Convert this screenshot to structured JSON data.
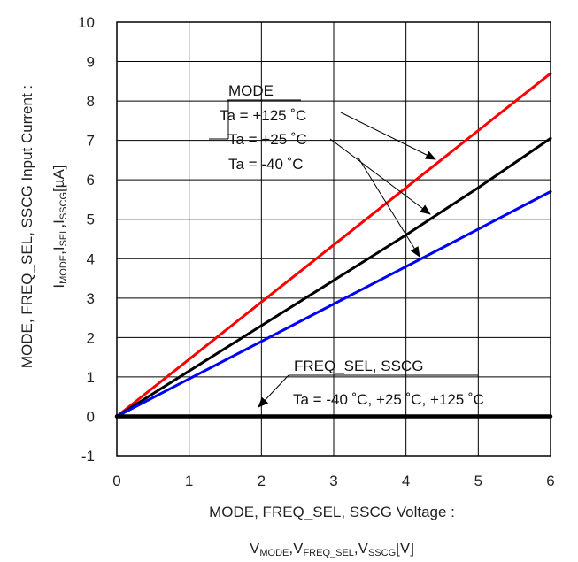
{
  "chart_data": {
    "type": "line",
    "xlabel": {
      "line1": "MODE, FREQ_SEL, SSCG Voltage :",
      "line2": [
        {
          "main": "V",
          "sub": "MODE"
        },
        {
          "main": ",V",
          "sub": "FREQ_SEL"
        },
        {
          "main": ",V",
          "sub": "SSCG"
        },
        {
          "main": "[V]",
          "sub": ""
        }
      ]
    },
    "ylabel": {
      "line1": "MODE, FREQ_SEL, SSCG Input Current :",
      "line2": [
        {
          "main": "I",
          "sub": "MODE"
        },
        {
          "main": ",I",
          "sub": "SEL"
        },
        {
          "main": ",I",
          "sub": "SSCG"
        },
        {
          "main": "[µA]",
          "sub": ""
        }
      ]
    },
    "xlim": [
      0,
      6
    ],
    "ylim": [
      -1,
      10
    ],
    "xticks": [
      "0",
      "1",
      "2",
      "3",
      "4",
      "5",
      "6"
    ],
    "yticks": [
      "-1",
      "0",
      "1",
      "2",
      "3",
      "4",
      "5",
      "6",
      "7",
      "8",
      "9",
      "10"
    ],
    "grid": true,
    "series": [
      {
        "color": "#ff0000",
        "x": [
          0,
          1,
          2,
          3,
          4,
          5,
          6
        ],
        "y": [
          0,
          1.45,
          2.9,
          4.35,
          5.8,
          7.25,
          8.7
        ]
      },
      {
        "color": "#000000",
        "x": [
          0,
          1,
          2,
          3,
          4,
          5,
          6
        ],
        "y": [
          0,
          1.15,
          2.3,
          3.45,
          4.6,
          5.8,
          7.05
        ]
      },
      {
        "color": "#0000ff",
        "x": [
          0,
          1,
          2,
          3,
          4,
          5,
          6
        ],
        "y": [
          0,
          0.95,
          1.9,
          2.85,
          3.8,
          4.75,
          5.7
        ]
      },
      {
        "color": "#000000",
        "x": [
          0,
          6
        ],
        "y": [
          0,
          0
        ]
      }
    ],
    "annotations": {
      "mode_title": "MODE",
      "mode_t125": "Ta = +125 ˚C",
      "mode_t25": "Ta = +25 ˚C",
      "mode_tm40": "Ta = -40 ˚C",
      "fs_title": "FREQ_SEL, SSCG",
      "fs_temps": "Ta = -40 ˚C, +25 ˚C, +125 ˚C"
    }
  }
}
